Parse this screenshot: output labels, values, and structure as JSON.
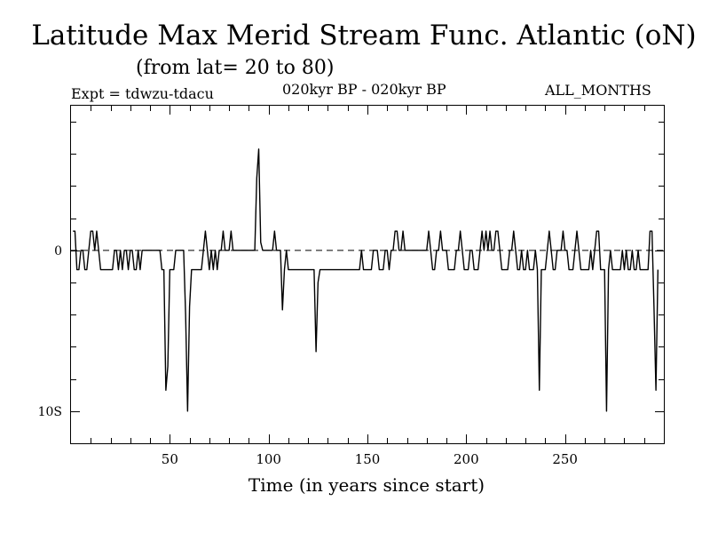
{
  "header": {
    "title": "Latitude Max Merid Stream Func. Atlantic (oN)",
    "subtitle": "(from lat= 20 to 80)",
    "expt": "Expt = tdwzu-tdacu",
    "period": "020kyr BP - 020kyr BP",
    "months": "ALL_MONTHS"
  },
  "chart_data": {
    "type": "line",
    "title": "Latitude Max Merid Stream Func. Atlantic (oN)",
    "subtitle": "(from lat= 20 to 80)",
    "xlabel": "Time (in years since start)",
    "ylabel": "",
    "xlim": [
      0,
      300
    ],
    "ylim": [
      -12,
      9
    ],
    "xticks": [
      50,
      100,
      150,
      200,
      250
    ],
    "xtick_labels": [
      "50",
      "100",
      "150",
      "200",
      "250"
    ],
    "yticks": [
      0,
      -10
    ],
    "ytick_labels": [
      "0",
      "10S"
    ],
    "reference_line": {
      "y": 0,
      "style": "dashed"
    },
    "series": [
      {
        "name": "tdwzu-tdacu",
        "values": [
          1.2,
          1.2,
          -1.2,
          -1.2,
          0,
          0,
          -1.2,
          -1.2,
          0,
          1.2,
          1.2,
          0,
          1.2,
          0,
          -1.2,
          -1.2,
          -1.2,
          -1.2,
          -1.2,
          -1.2,
          -1.2,
          0,
          0,
          -1.2,
          0,
          -1.2,
          0,
          0,
          -1.2,
          0,
          0,
          -1.2,
          -1.2,
          0,
          -1.2,
          0,
          0,
          0,
          0,
          0,
          0,
          0,
          0,
          0,
          0,
          -1.2,
          -1.2,
          -8.7,
          -7.2,
          -1.2,
          -1.2,
          -1.2,
          0,
          0,
          0,
          0,
          0,
          -4,
          -10,
          -3.5,
          -1.2,
          -1.2,
          -1.2,
          -1.2,
          -1.2,
          -1.2,
          0,
          1.2,
          0,
          -1.2,
          0,
          -1.2,
          0,
          -1.2,
          0,
          0,
          1.2,
          0,
          0,
          0,
          1.2,
          0,
          0,
          0,
          0,
          0,
          0,
          0,
          0,
          0,
          0,
          0,
          0,
          4.5,
          6.3,
          0.5,
          0,
          0,
          0,
          0,
          0,
          0,
          1.2,
          0,
          0,
          0,
          -3.7,
          -1.2,
          0,
          -1.2,
          -1.2,
          -1.2,
          -1.2,
          -1.2,
          -1.2,
          -1.2,
          -1.2,
          -1.2,
          -1.2,
          -1.2,
          -1.2,
          -1.2,
          -1.2,
          -6.3,
          -2,
          -1.2,
          -1.2,
          -1.2,
          -1.2,
          -1.2,
          -1.2,
          -1.2,
          -1.2,
          -1.2,
          -1.2,
          -1.2,
          -1.2,
          -1.2,
          -1.2,
          -1.2,
          -1.2,
          -1.2,
          -1.2,
          -1.2,
          -1.2,
          -1.2,
          0,
          -1.2,
          -1.2,
          -1.2,
          -1.2,
          -1.2,
          0,
          0,
          0,
          -1.2,
          -1.2,
          -1.2,
          0,
          0,
          -1.2,
          0,
          0,
          1.2,
          1.2,
          0,
          0,
          1.2,
          0,
          0,
          0,
          0,
          0,
          0,
          0,
          0,
          0,
          0,
          0,
          0,
          1.2,
          0,
          -1.2,
          -1.2,
          0,
          0,
          1.2,
          0,
          0,
          0,
          -1.2,
          -1.2,
          -1.2,
          -1.2,
          0,
          0,
          1.2,
          0,
          -1.2,
          -1.2,
          -1.2,
          0,
          0,
          -1.2,
          -1.2,
          -1.2,
          0,
          1.2,
          0,
          1.2,
          0,
          1.2,
          0,
          0,
          1.2,
          1.2,
          0,
          -1.2,
          -1.2,
          -1.2,
          -1.2,
          0,
          0,
          1.2,
          0,
          -1.2,
          -1.2,
          0,
          -1.2,
          -1.2,
          0,
          -1.2,
          -1.2,
          -1.2,
          0,
          -1.2,
          -8.7,
          -1.2,
          -1.2,
          -1.2,
          0,
          1.2,
          0,
          -1.2,
          -1.2,
          0,
          0,
          0,
          1.2,
          0,
          0,
          -1.2,
          -1.2,
          -1.2,
          0,
          1.2,
          0,
          -1.2,
          -1.2,
          -1.2,
          -1.2,
          -1.2,
          0,
          -1.2,
          0,
          1.2,
          1.2,
          -1.2,
          -1.2,
          -1.2,
          -10,
          -1.2,
          0,
          -1.2,
          -1.2,
          -1.2,
          -1.2,
          -1.2,
          0,
          -1.2,
          0,
          -1.2,
          -1.2,
          0,
          -1.2,
          -1.2,
          0,
          -1.2,
          -1.2,
          -1.2,
          -1.2,
          -1.2,
          1.2,
          1.2,
          -3.5,
          -8.7,
          -1.2
        ]
      }
    ]
  }
}
